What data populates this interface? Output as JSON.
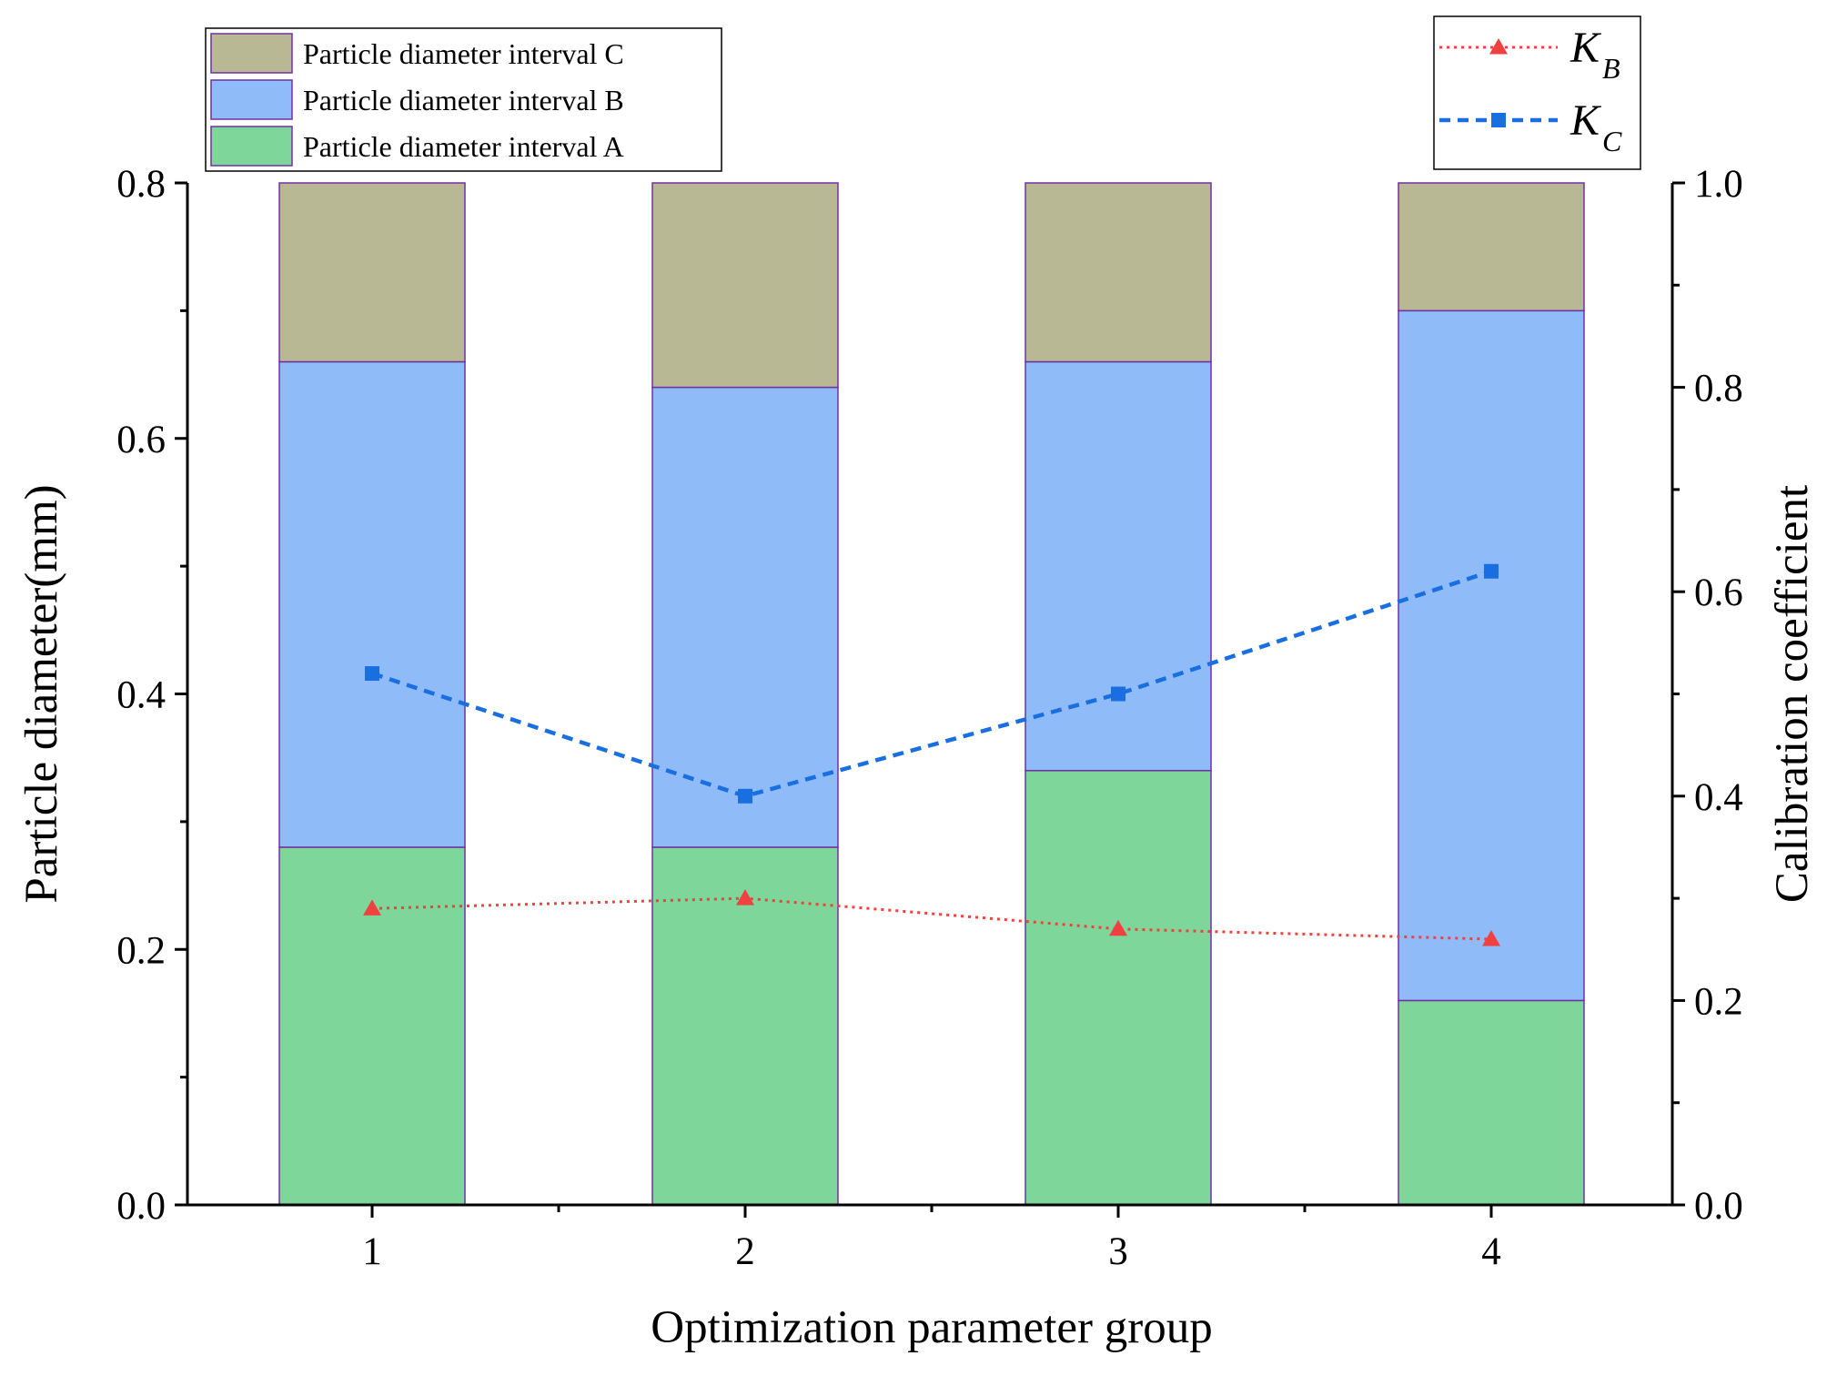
{
  "chart_data": {
    "type": "bar",
    "stacked": true,
    "categories": [
      "1",
      "2",
      "3",
      "4"
    ],
    "xlabel": "Optimization parameter group",
    "ylabel": "Particle diameter(mm)",
    "y2label": "Calibration coefficient",
    "ylim": [
      0,
      0.8
    ],
    "y2lim": [
      0,
      1.0
    ],
    "y_ticks": [
      "0.0",
      "0.2",
      "0.4",
      "0.6",
      "0.8"
    ],
    "y_tick_values": [
      0,
      0.2,
      0.4,
      0.6,
      0.8
    ],
    "y2_ticks": [
      "0.0",
      "0.2",
      "0.4",
      "0.6",
      "0.8",
      "1.0"
    ],
    "y2_tick_values": [
      0,
      0.2,
      0.4,
      0.6,
      0.8,
      1.0
    ],
    "series": [
      {
        "name": "Particle diameter interval A",
        "values": [
          0.28,
          0.28,
          0.34,
          0.16
        ],
        "color": "#7ED69A"
      },
      {
        "name": "Particle diameter interval B",
        "values": [
          0.38,
          0.36,
          0.32,
          0.54
        ],
        "color": "#8FBCF9"
      },
      {
        "name": "Particle diameter interval C",
        "values": [
          0.14,
          0.16,
          0.14,
          0.1
        ],
        "color": "#B8B895"
      }
    ],
    "line_series": [
      {
        "name": "K",
        "subscript": "B",
        "values": [
          0.29,
          0.3,
          0.27,
          0.26
        ],
        "color": "#F04040",
        "marker": "triangle",
        "dash": "dotted"
      },
      {
        "name": "K",
        "subscript": "C",
        "values": [
          0.52,
          0.4,
          0.5,
          0.62
        ],
        "color": "#1A6FE0",
        "marker": "square",
        "dash": "dashed"
      }
    ],
    "bar_edge_color": "#7030A0",
    "legend_bars_position": "top-left",
    "legend_lines_position": "top-right"
  }
}
